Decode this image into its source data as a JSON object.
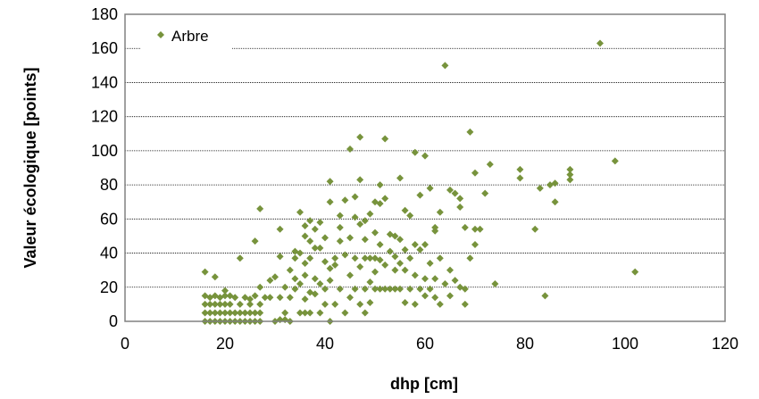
{
  "chart_data": {
    "type": "scatter",
    "xlabel": "dhp [cm]",
    "ylabel": "Valeur écologique [points]",
    "xlim": [
      0,
      120
    ],
    "ylim": [
      0,
      180
    ],
    "xticks": [
      "0",
      "20",
      "40",
      "60",
      "80",
      "100",
      "120"
    ],
    "yticks": [
      "0",
      "20",
      "40",
      "60",
      "80",
      "100",
      "120",
      "140",
      "160",
      "180"
    ],
    "grid": "horizontal",
    "legend": "top-left",
    "series": [
      {
        "name": "Arbre",
        "color": "#77933C",
        "marker": "diamond",
        "points": [
          [
            16,
            0
          ],
          [
            16,
            5
          ],
          [
            16,
            10
          ],
          [
            16,
            15
          ],
          [
            16,
            29
          ],
          [
            17,
            0
          ],
          [
            17,
            5
          ],
          [
            17,
            10
          ],
          [
            17,
            14
          ],
          [
            18,
            0
          ],
          [
            18,
            5
          ],
          [
            18,
            10
          ],
          [
            18,
            15
          ],
          [
            18,
            26
          ],
          [
            19,
            0
          ],
          [
            19,
            5
          ],
          [
            19,
            10
          ],
          [
            19,
            14
          ],
          [
            20,
            0
          ],
          [
            20,
            5
          ],
          [
            20,
            10
          ],
          [
            20,
            15
          ],
          [
            20,
            18
          ],
          [
            21,
            0
          ],
          [
            21,
            5
          ],
          [
            21,
            10
          ],
          [
            21,
            15
          ],
          [
            22,
            0
          ],
          [
            22,
            5
          ],
          [
            22,
            14
          ],
          [
            23,
            0
          ],
          [
            23,
            5
          ],
          [
            23,
            10
          ],
          [
            23,
            37
          ],
          [
            24,
            0
          ],
          [
            24,
            5
          ],
          [
            24,
            14
          ],
          [
            25,
            0
          ],
          [
            25,
            5
          ],
          [
            25,
            10
          ],
          [
            25,
            13
          ],
          [
            26,
            0
          ],
          [
            26,
            5
          ],
          [
            26,
            15
          ],
          [
            26,
            47
          ],
          [
            27,
            0
          ],
          [
            27,
            5
          ],
          [
            27,
            10
          ],
          [
            27,
            20
          ],
          [
            27,
            66
          ],
          [
            28,
            14
          ],
          [
            29,
            14
          ],
          [
            29,
            24
          ],
          [
            30,
            26
          ],
          [
            30,
            0
          ],
          [
            31,
            1
          ],
          [
            31,
            14
          ],
          [
            31,
            38
          ],
          [
            31,
            54
          ],
          [
            32,
            1
          ],
          [
            32,
            5
          ],
          [
            32,
            20
          ],
          [
            33,
            0
          ],
          [
            33,
            14
          ],
          [
            33,
            30
          ],
          [
            34,
            19
          ],
          [
            34,
            25
          ],
          [
            34,
            37
          ],
          [
            34,
            41
          ],
          [
            35,
            5
          ],
          [
            35,
            22
          ],
          [
            35,
            40
          ],
          [
            35,
            64
          ],
          [
            36,
            5
          ],
          [
            36,
            13
          ],
          [
            36,
            27
          ],
          [
            36,
            34
          ],
          [
            36,
            50
          ],
          [
            36,
            56
          ],
          [
            37,
            5
          ],
          [
            37,
            17
          ],
          [
            37,
            37
          ],
          [
            37,
            47
          ],
          [
            37,
            59
          ],
          [
            38,
            16
          ],
          [
            38,
            25
          ],
          [
            38,
            43
          ],
          [
            38,
            54
          ],
          [
            39,
            5
          ],
          [
            39,
            22
          ],
          [
            39,
            43
          ],
          [
            39,
            58
          ],
          [
            40,
            10
          ],
          [
            40,
            19
          ],
          [
            40,
            35
          ],
          [
            40,
            49
          ],
          [
            41,
            0
          ],
          [
            41,
            24
          ],
          [
            41,
            31
          ],
          [
            41,
            70
          ],
          [
            41,
            82
          ],
          [
            42,
            10
          ],
          [
            42,
            33
          ],
          [
            42,
            37
          ],
          [
            43,
            19
          ],
          [
            43,
            47
          ],
          [
            43,
            55
          ],
          [
            43,
            62
          ],
          [
            44,
            5
          ],
          [
            44,
            39
          ],
          [
            44,
            71
          ],
          [
            45,
            14
          ],
          [
            45,
            27
          ],
          [
            45,
            49
          ],
          [
            45,
            101
          ],
          [
            46,
            19
          ],
          [
            46,
            37
          ],
          [
            46,
            61
          ],
          [
            46,
            73
          ],
          [
            47,
            10
          ],
          [
            47,
            32
          ],
          [
            47,
            57
          ],
          [
            47,
            83
          ],
          [
            47,
            108
          ],
          [
            48,
            5
          ],
          [
            48,
            19
          ],
          [
            48,
            37
          ],
          [
            48,
            48
          ],
          [
            48,
            59
          ],
          [
            49,
            11
          ],
          [
            49,
            23
          ],
          [
            49,
            37
          ],
          [
            49,
            63
          ],
          [
            50,
            19
          ],
          [
            50,
            29
          ],
          [
            50,
            37
          ],
          [
            50,
            52
          ],
          [
            50,
            70
          ],
          [
            51,
            19
          ],
          [
            51,
            36
          ],
          [
            51,
            45
          ],
          [
            51,
            69
          ],
          [
            51,
            80
          ],
          [
            52,
            19
          ],
          [
            52,
            33
          ],
          [
            52,
            72
          ],
          [
            52,
            107
          ],
          [
            53,
            19
          ],
          [
            53,
            41
          ],
          [
            53,
            51
          ],
          [
            54,
            19
          ],
          [
            54,
            30
          ],
          [
            54,
            38
          ],
          [
            54,
            50
          ],
          [
            55,
            19
          ],
          [
            55,
            34
          ],
          [
            55,
            48
          ],
          [
            55,
            84
          ],
          [
            56,
            11
          ],
          [
            56,
            30
          ],
          [
            56,
            42
          ],
          [
            56,
            65
          ],
          [
            57,
            19
          ],
          [
            57,
            37
          ],
          [
            57,
            62
          ],
          [
            58,
            10
          ],
          [
            58,
            27
          ],
          [
            58,
            45
          ],
          [
            58,
            99
          ],
          [
            59,
            19
          ],
          [
            59,
            42
          ],
          [
            59,
            74
          ],
          [
            60,
            15
          ],
          [
            60,
            25
          ],
          [
            60,
            45
          ],
          [
            60,
            97
          ],
          [
            61,
            19
          ],
          [
            61,
            34
          ],
          [
            61,
            78
          ],
          [
            62,
            14
          ],
          [
            62,
            25
          ],
          [
            62,
            53
          ],
          [
            62,
            55
          ],
          [
            63,
            10
          ],
          [
            63,
            37
          ],
          [
            63,
            64
          ],
          [
            64,
            22
          ],
          [
            64,
            150
          ],
          [
            65,
            15
          ],
          [
            65,
            30
          ],
          [
            65,
            77
          ],
          [
            66,
            24
          ],
          [
            66,
            75
          ],
          [
            67,
            20
          ],
          [
            67,
            67
          ],
          [
            67,
            72
          ],
          [
            68,
            10
          ],
          [
            68,
            19
          ],
          [
            68,
            55
          ],
          [
            69,
            111
          ],
          [
            69,
            37
          ],
          [
            70,
            45
          ],
          [
            70,
            54
          ],
          [
            70,
            87
          ],
          [
            71,
            54
          ],
          [
            72,
            75
          ],
          [
            73,
            92
          ],
          [
            74,
            22
          ],
          [
            79,
            84
          ],
          [
            79,
            89
          ],
          [
            82,
            54
          ],
          [
            83,
            78
          ],
          [
            84,
            15
          ],
          [
            85,
            80
          ],
          [
            86,
            70
          ],
          [
            86,
            81
          ],
          [
            89,
            83
          ],
          [
            89,
            86
          ],
          [
            89,
            89
          ],
          [
            95,
            163
          ],
          [
            98,
            94
          ],
          [
            102,
            29
          ]
        ]
      }
    ]
  }
}
